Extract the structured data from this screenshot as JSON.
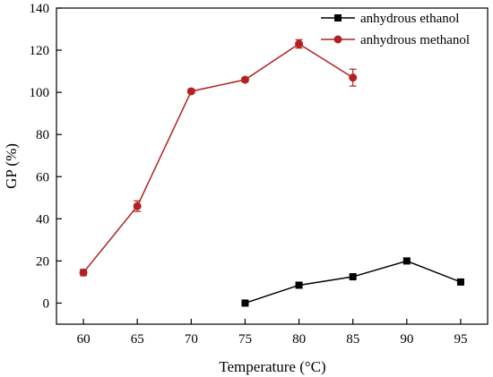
{
  "chart_data": {
    "type": "line",
    "title": "",
    "xlabel": "Temperature (°C)",
    "ylabel": "GP (%)",
    "xlim": [
      57.5,
      97.5
    ],
    "ylim": [
      -10,
      140
    ],
    "xticks": [
      60,
      65,
      70,
      75,
      80,
      85,
      90,
      95
    ],
    "yticks": [
      0,
      20,
      40,
      60,
      80,
      100,
      120,
      140
    ],
    "grid": false,
    "legend_position": "top-right",
    "series": [
      {
        "name": "anhydrous ethanol",
        "color": "#000000",
        "marker": "square",
        "x": [
          75,
          80,
          85,
          90,
          95
        ],
        "y": [
          0,
          8.5,
          12.5,
          20,
          10
        ],
        "error": [
          0,
          0,
          0,
          0,
          0
        ]
      },
      {
        "name": "anhydrous methanol",
        "color": "#b22222",
        "marker": "circle",
        "x": [
          60,
          65,
          70,
          75,
          80,
          85
        ],
        "y": [
          14.5,
          46,
          100.5,
          106,
          123,
          107
        ],
        "error": [
          1.5,
          2.5,
          1.0,
          1.0,
          2.0,
          4.0
        ]
      }
    ]
  }
}
